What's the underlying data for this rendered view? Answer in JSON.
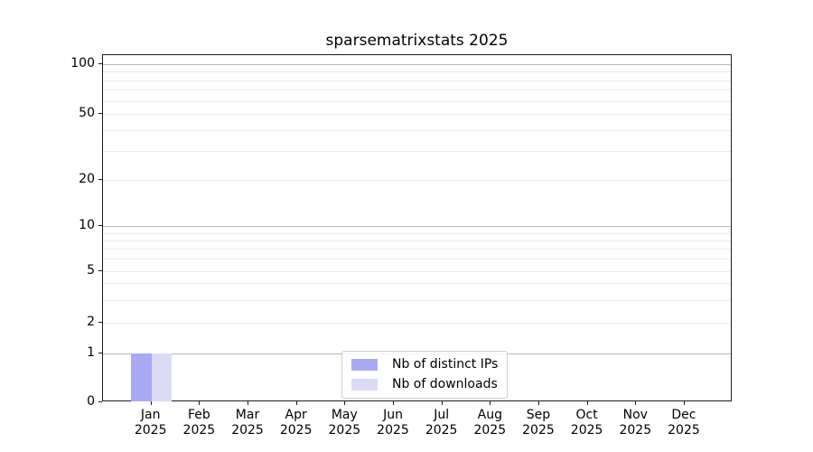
{
  "chart_data": {
    "type": "bar",
    "title": "sparsematrixstats 2025",
    "categories": [
      "Jan 2025",
      "Feb 2025",
      "Mar 2025",
      "Apr 2025",
      "May 2025",
      "Jun 2025",
      "Jul 2025",
      "Aug 2025",
      "Sep 2025",
      "Oct 2025",
      "Nov 2025",
      "Dec 2025"
    ],
    "x_tick_months": [
      "Jan",
      "Feb",
      "Mar",
      "Apr",
      "May",
      "Jun",
      "Jul",
      "Aug",
      "Sep",
      "Oct",
      "Nov",
      "Dec"
    ],
    "x_tick_year": "2025",
    "series": [
      {
        "name": "Nb of distinct IPs",
        "color": "#a9a9f3",
        "values": [
          1,
          0,
          0,
          0,
          0,
          0,
          0,
          0,
          0,
          0,
          0,
          0
        ]
      },
      {
        "name": "Nb of downloads",
        "color": "#dbdbf8",
        "values": [
          1,
          0,
          0,
          0,
          0,
          0,
          0,
          0,
          0,
          0,
          0,
          0
        ]
      }
    ],
    "yticks": [
      "100",
      "50",
      "20",
      "10",
      "5",
      "2",
      "1",
      "0"
    ],
    "yscale": "log-like (linear segment between 0 and 1)",
    "ylim": [
      0,
      115
    ],
    "xlabel": "",
    "ylabel": "",
    "grid": true,
    "legend": {
      "position": "lower center"
    }
  }
}
